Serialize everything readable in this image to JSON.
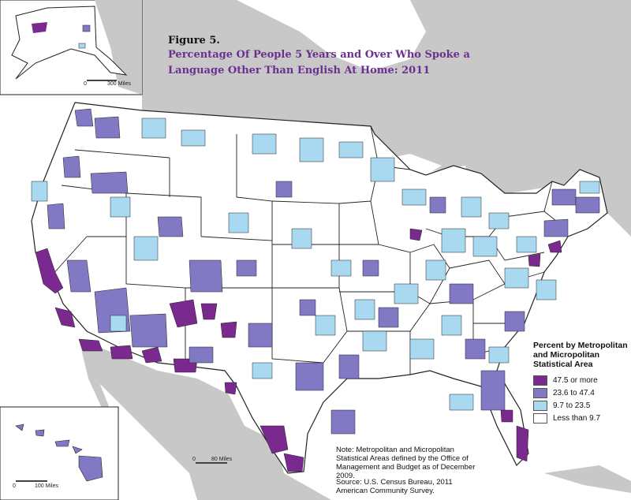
{
  "figure_label": "Figure 5.",
  "title": "Percentage Of People 5 Years and Over Who Spoke a Language Other Than English At Home: 2011",
  "legend": {
    "title": "Percent by Metropolitan and Micropolitan Statistical Area",
    "items": [
      {
        "label": "47.5 or more",
        "color": "#7a2a8e"
      },
      {
        "label": "23.6 to 47.4",
        "color": "#8179c4"
      },
      {
        "label": "9.7 to 23.5",
        "color": "#a9d9f1"
      },
      {
        "label": "Less than 9.7",
        "color": "#ffffff"
      }
    ]
  },
  "scales": {
    "alaska": {
      "start": "0",
      "end": "300 Miles"
    },
    "conus": {
      "start": "0",
      "end": "80 Miles"
    },
    "hawaii": {
      "start": "0",
      "end": "100 Miles"
    }
  },
  "note": "Note: Metropolitan and Micropolitan Statistical Areas defined by the Office of Management and Budget as of December 2009.",
  "source": "Source: U.S. Census Bureau, 2011 American Community Survey.",
  "colors": {
    "background_land": "#ffffff",
    "foreign_land": "#c8c8c8",
    "water": "#ffffff",
    "borders": "#222222"
  }
}
